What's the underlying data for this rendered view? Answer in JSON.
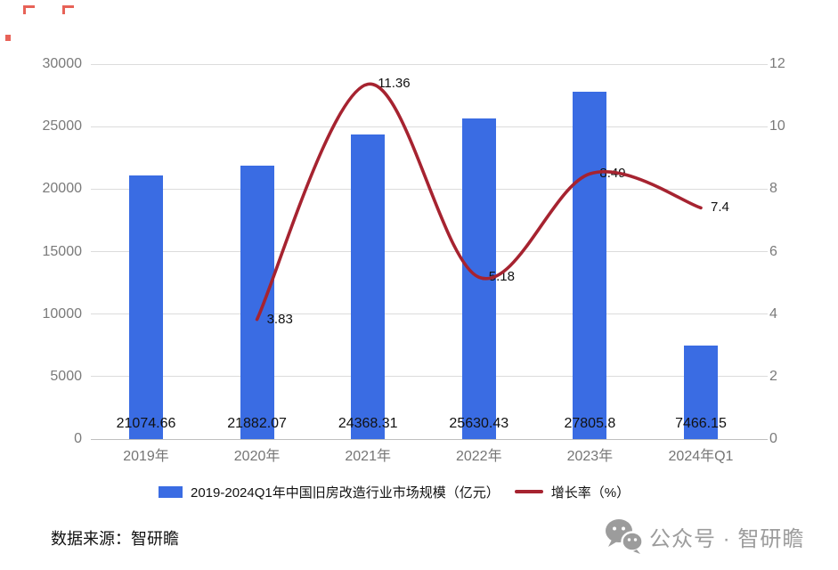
{
  "chart_data": {
    "type": "bar+line combo",
    "categories": [
      "2019年",
      "2020年",
      "2021年",
      "2022年",
      "2023年",
      "2024年Q1"
    ],
    "series": [
      {
        "name": "2019-2024Q1年中国旧房改造行业市场规模（亿元）",
        "type": "bar",
        "axis": "left",
        "color": "#3A6CE3",
        "values": [
          21074.66,
          21882.07,
          24368.31,
          25630.43,
          27805.8,
          7466.15
        ],
        "labels": [
          "21074.66",
          "21882.07",
          "24368.31",
          "25630.43",
          "27805.8",
          "7466.15"
        ]
      },
      {
        "name": "增长率（%）",
        "type": "line",
        "axis": "right",
        "color": "#A62330",
        "start_category": "2020年",
        "values": [
          3.83,
          11.36,
          5.18,
          8.49,
          7.4
        ],
        "labels": [
          "3.83",
          "11.36",
          "5.18",
          "8.49",
          "7.4"
        ]
      }
    ],
    "left_axis": {
      "min": 0,
      "max": 30000,
      "ticks": [
        "0",
        "5000",
        "10000",
        "15000",
        "20000",
        "25000",
        "30000"
      ]
    },
    "right_axis": {
      "min": 0,
      "max": 12,
      "ticks": [
        "0",
        "2",
        "4",
        "6",
        "8",
        "10",
        "12"
      ]
    },
    "grid": true,
    "legend_position": "bottom",
    "title": ""
  },
  "legend": {
    "bar_label": "2019-2024Q1年中国旧房改造行业市场规模（亿元）",
    "line_label": "增长率（%）"
  },
  "footer": {
    "source": "数据来源：智研瞻"
  },
  "watermark": {
    "icon": "wechat-icon",
    "text": "公众号 · 智研瞻"
  },
  "colors": {
    "bar": "#3A6CE3",
    "line": "#A62330",
    "grid": "#DCDCDC",
    "axis": "#BFBFBF",
    "tick_text": "#7A7A7A",
    "watermark_text": "#9C9C9C"
  }
}
